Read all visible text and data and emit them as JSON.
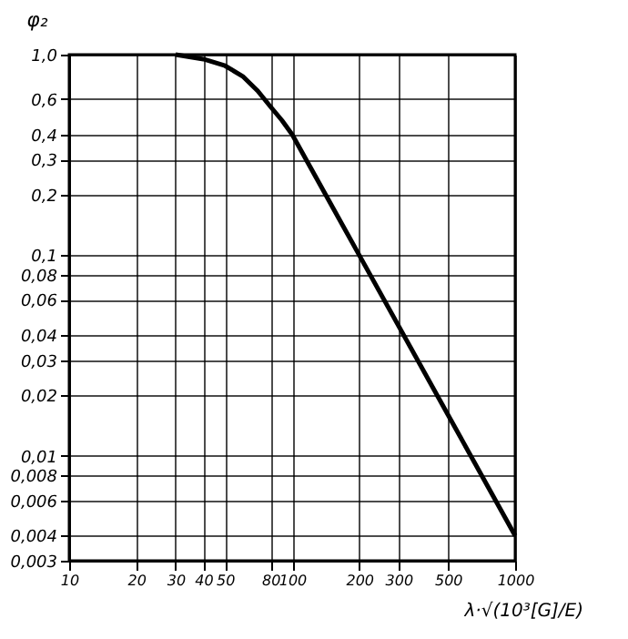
{
  "chart_data": {
    "type": "line",
    "xlabel": "λ·√(10³[G]/E)",
    "ylabel": "φ₂",
    "log": "xy",
    "grid": true,
    "marker": "none",
    "line_style": "solid",
    "x": [
      30,
      40,
      50,
      60,
      70,
      80,
      90,
      100,
      200,
      500,
      1000
    ],
    "series": [
      {
        "color": "#000000",
        "values": [
          1.0,
          0.95,
          0.88,
          0.78,
          0.66,
          0.55,
          0.47,
          0.4,
          0.1,
          0.016,
          0.004
        ]
      }
    ],
    "xlim": [
      10,
      1000
    ],
    "ylim": [
      0.003,
      1.0
    ],
    "xticks": [
      10,
      20,
      30,
      40,
      50,
      80,
      100,
      200,
      300,
      500,
      1000
    ],
    "yticks": [
      {
        "value": 1.0,
        "label": "1,0"
      },
      {
        "value": 0.6,
        "label": "0,6"
      },
      {
        "value": 0.4,
        "label": "0,4"
      },
      {
        "value": 0.3,
        "label": "0,3"
      },
      {
        "value": 0.2,
        "label": "0,2"
      },
      {
        "value": 0.1,
        "label": "0,1"
      },
      {
        "value": 0.08,
        "label": "0,08"
      },
      {
        "value": 0.06,
        "label": "0,06"
      },
      {
        "value": 0.04,
        "label": "0,04"
      },
      {
        "value": 0.03,
        "label": "0,03"
      },
      {
        "value": 0.02,
        "label": "0,02"
      },
      {
        "value": 0.01,
        "label": "0,01"
      },
      {
        "value": 0.008,
        "label": "0,008"
      },
      {
        "value": 0.006,
        "label": "0,006"
      },
      {
        "value": 0.004,
        "label": "0,004"
      },
      {
        "value": 0.003,
        "label": "0,003"
      }
    ]
  }
}
